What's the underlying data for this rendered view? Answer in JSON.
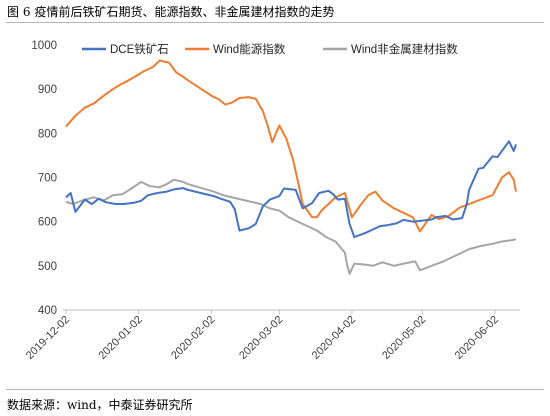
{
  "figure": {
    "number": "图 6",
    "title": "疫情前后铁矿石期货、能源指数、非金属建材指数的走势",
    "source": "数据来源：wind，中泰证券研究所"
  },
  "chart_data": {
    "type": "line",
    "ylim": [
      400,
      1000
    ],
    "yticks": [
      400,
      500,
      600,
      700,
      800,
      900,
      1000
    ],
    "ytick_labels": [
      "400",
      "500",
      "600",
      "700",
      "800",
      "900",
      "1000"
    ],
    "x_range": [
      "2019-12-02",
      "2020-06-11"
    ],
    "xtick_labels": [
      "2019-12-02",
      "2020-01-02",
      "2020-02-02",
      "2020-03-02",
      "2020-04-02",
      "2020-05-02",
      "2020-06-02"
    ],
    "grid": false,
    "legend_position": "top",
    "series": [
      {
        "name": "DCE铁矿石",
        "color": "#4472c4",
        "points": [
          [
            "2019-12-02",
            655
          ],
          [
            "2019-12-04",
            665
          ],
          [
            "2019-12-06",
            622
          ],
          [
            "2019-12-10",
            650
          ],
          [
            "2019-12-13",
            640
          ],
          [
            "2019-12-16",
            652
          ],
          [
            "2019-12-19",
            644
          ],
          [
            "2019-12-23",
            640
          ],
          [
            "2019-12-27",
            640
          ],
          [
            "2019-12-31",
            643
          ],
          [
            "2020-01-03",
            647
          ],
          [
            "2020-01-06",
            660
          ],
          [
            "2020-01-10",
            665
          ],
          [
            "2020-01-14",
            668
          ],
          [
            "2020-01-17",
            673
          ],
          [
            "2020-01-21",
            676
          ],
          [
            "2020-01-23",
            672
          ],
          [
            "2020-02-03",
            658
          ],
          [
            "2020-02-06",
            652
          ],
          [
            "2020-02-10",
            645
          ],
          [
            "2020-02-12",
            628
          ],
          [
            "2020-02-14",
            580
          ],
          [
            "2020-02-18",
            585
          ],
          [
            "2020-02-21",
            595
          ],
          [
            "2020-02-24",
            635
          ],
          [
            "2020-02-27",
            650
          ],
          [
            "2020-03-02",
            658
          ],
          [
            "2020-03-04",
            675
          ],
          [
            "2020-03-09",
            672
          ],
          [
            "2020-03-12",
            630
          ],
          [
            "2020-03-16",
            642
          ],
          [
            "2020-03-19",
            665
          ],
          [
            "2020-03-23",
            670
          ],
          [
            "2020-03-25",
            662
          ],
          [
            "2020-03-27",
            650
          ],
          [
            "2020-03-30",
            652
          ],
          [
            "2020-04-01",
            595
          ],
          [
            "2020-04-03",
            565
          ],
          [
            "2020-04-08",
            575
          ],
          [
            "2020-04-10",
            580
          ],
          [
            "2020-04-14",
            590
          ],
          [
            "2020-04-17",
            592
          ],
          [
            "2020-04-21",
            596
          ],
          [
            "2020-04-24",
            604
          ],
          [
            "2020-04-28",
            600
          ],
          [
            "2020-05-06",
            605
          ],
          [
            "2020-05-08",
            610
          ],
          [
            "2020-05-12",
            613
          ],
          [
            "2020-05-15",
            605
          ],
          [
            "2020-05-19",
            608
          ],
          [
            "2020-05-21",
            640
          ],
          [
            "2020-05-22",
            672
          ],
          [
            "2020-05-26",
            720
          ],
          [
            "2020-05-28",
            722
          ],
          [
            "2020-06-01",
            748
          ],
          [
            "2020-06-03",
            746
          ],
          [
            "2020-06-05",
            760
          ],
          [
            "2020-06-08",
            782
          ],
          [
            "2020-06-10",
            760
          ],
          [
            "2020-06-11",
            775
          ]
        ]
      },
      {
        "name": "Wind能源指数",
        "color": "#ed7d31",
        "points": [
          [
            "2019-12-02",
            815
          ],
          [
            "2019-12-06",
            840
          ],
          [
            "2019-12-10",
            858
          ],
          [
            "2019-12-14",
            868
          ],
          [
            "2019-12-18",
            885
          ],
          [
            "2019-12-22",
            900
          ],
          [
            "2019-12-25",
            910
          ],
          [
            "2019-12-28",
            918
          ],
          [
            "2020-01-01",
            930
          ],
          [
            "2020-01-04",
            940
          ],
          [
            "2020-01-08",
            950
          ],
          [
            "2020-01-11",
            965
          ],
          [
            "2020-01-15",
            960
          ],
          [
            "2020-01-18",
            938
          ],
          [
            "2020-01-21",
            928
          ],
          [
            "2020-01-23",
            920
          ],
          [
            "2020-02-03",
            882
          ],
          [
            "2020-02-05",
            878
          ],
          [
            "2020-02-08",
            865
          ],
          [
            "2020-02-11",
            870
          ],
          [
            "2020-02-14",
            880
          ],
          [
            "2020-02-18",
            882
          ],
          [
            "2020-02-21",
            878
          ],
          [
            "2020-02-24",
            850
          ],
          [
            "2020-02-26",
            818
          ],
          [
            "2020-02-28",
            780
          ],
          [
            "2020-03-02",
            818
          ],
          [
            "2020-03-05",
            788
          ],
          [
            "2020-03-08",
            738
          ],
          [
            "2020-03-10",
            690
          ],
          [
            "2020-03-12",
            640
          ],
          [
            "2020-03-14",
            625
          ],
          [
            "2020-03-16",
            610
          ],
          [
            "2020-03-18",
            610
          ],
          [
            "2020-03-20",
            625
          ],
          [
            "2020-03-23",
            640
          ],
          [
            "2020-03-26",
            655
          ],
          [
            "2020-03-30",
            665
          ],
          [
            "2020-04-02",
            610
          ],
          [
            "2020-04-06",
            640
          ],
          [
            "2020-04-09",
            660
          ],
          [
            "2020-04-12",
            668
          ],
          [
            "2020-04-15",
            648
          ],
          [
            "2020-04-20",
            630
          ],
          [
            "2020-04-24",
            620
          ],
          [
            "2020-04-28",
            610
          ],
          [
            "2020-05-01",
            578
          ],
          [
            "2020-05-06",
            615
          ],
          [
            "2020-05-09",
            606
          ],
          [
            "2020-05-13",
            612
          ],
          [
            "2020-05-18",
            632
          ],
          [
            "2020-05-22",
            640
          ],
          [
            "2020-05-27",
            650
          ],
          [
            "2020-06-01",
            660
          ],
          [
            "2020-06-03",
            680
          ],
          [
            "2020-06-05",
            700
          ],
          [
            "2020-06-08",
            712
          ],
          [
            "2020-06-10",
            695
          ],
          [
            "2020-06-11",
            668
          ]
        ]
      },
      {
        "name": "Wind非金属建材指数",
        "color": "#a5a5a5",
        "points": [
          [
            "2019-12-02",
            645
          ],
          [
            "2019-12-05",
            640
          ],
          [
            "2019-12-10",
            650
          ],
          [
            "2019-12-14",
            655
          ],
          [
            "2019-12-18",
            648
          ],
          [
            "2019-12-22",
            660
          ],
          [
            "2019-12-26",
            662
          ],
          [
            "2019-12-30",
            675
          ],
          [
            "2020-01-03",
            690
          ],
          [
            "2020-01-07",
            680
          ],
          [
            "2020-01-11",
            678
          ],
          [
            "2020-01-14",
            685
          ],
          [
            "2020-01-17",
            695
          ],
          [
            "2020-01-21",
            690
          ],
          [
            "2020-01-23",
            685
          ],
          [
            "2020-02-03",
            668
          ],
          [
            "2020-02-07",
            660
          ],
          [
            "2020-02-11",
            655
          ],
          [
            "2020-02-15",
            650
          ],
          [
            "2020-02-19",
            645
          ],
          [
            "2020-02-23",
            640
          ],
          [
            "2020-02-27",
            630
          ],
          [
            "2020-03-02",
            625
          ],
          [
            "2020-03-06",
            610
          ],
          [
            "2020-03-10",
            600
          ],
          [
            "2020-03-14",
            590
          ],
          [
            "2020-03-18",
            580
          ],
          [
            "2020-03-22",
            565
          ],
          [
            "2020-03-26",
            555
          ],
          [
            "2020-03-30",
            530
          ],
          [
            "2020-03-31",
            500
          ],
          [
            "2020-04-01",
            482
          ],
          [
            "2020-04-03",
            505
          ],
          [
            "2020-04-07",
            503
          ],
          [
            "2020-04-11",
            500
          ],
          [
            "2020-04-15",
            508
          ],
          [
            "2020-04-20",
            500
          ],
          [
            "2020-04-24",
            505
          ],
          [
            "2020-04-29",
            510
          ],
          [
            "2020-05-01",
            490
          ],
          [
            "2020-05-06",
            500
          ],
          [
            "2020-05-11",
            510
          ],
          [
            "2020-05-15",
            520
          ],
          [
            "2020-05-19",
            530
          ],
          [
            "2020-05-22",
            538
          ],
          [
            "2020-05-27",
            545
          ],
          [
            "2020-06-01",
            550
          ],
          [
            "2020-06-05",
            555
          ],
          [
            "2020-06-09",
            558
          ],
          [
            "2020-06-11",
            560
          ]
        ]
      }
    ]
  }
}
